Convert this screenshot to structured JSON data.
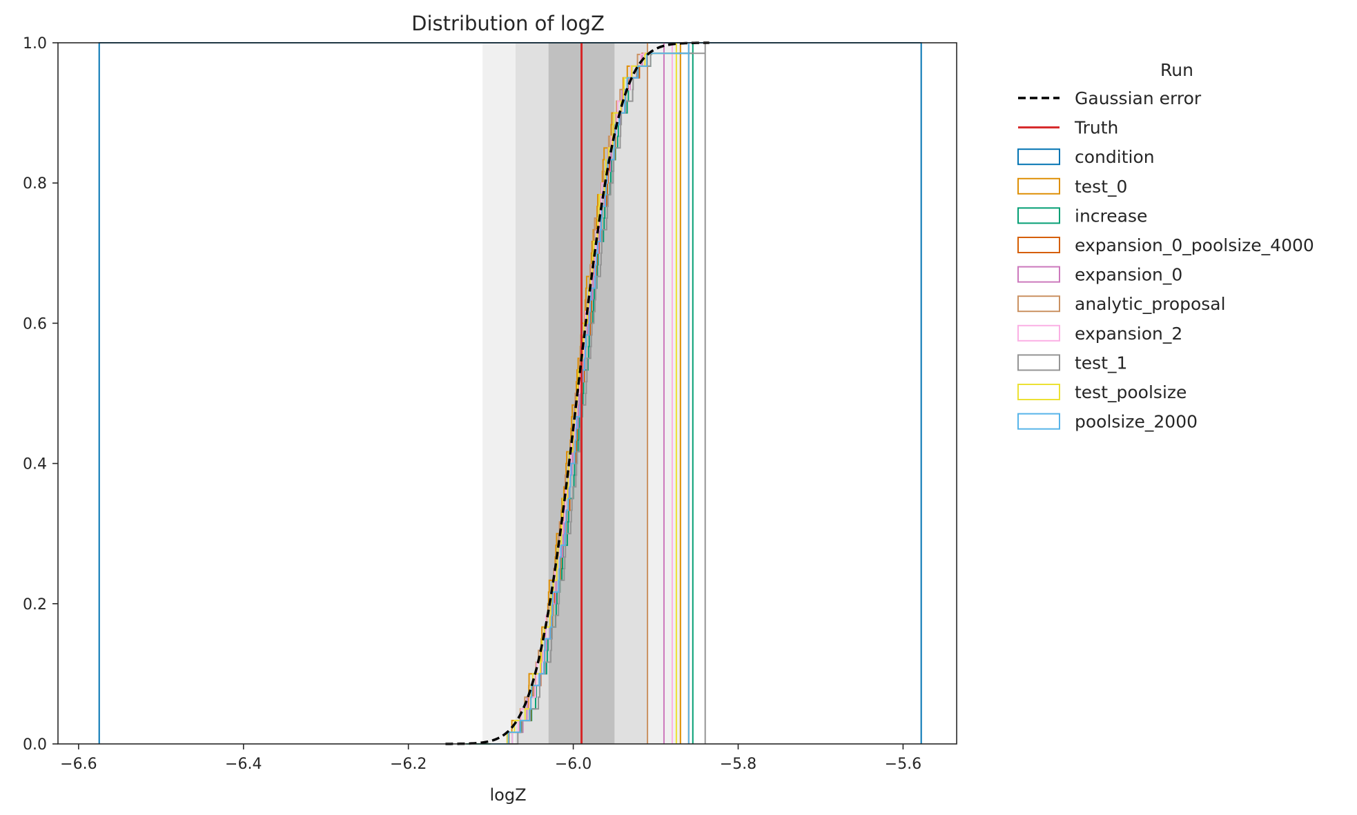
{
  "chart_data": {
    "type": "line",
    "title": "Distribution of logZ",
    "xlabel": "logZ",
    "ylabel": "",
    "xlim": [
      -6.625,
      -5.535
    ],
    "ylim": [
      0,
      1
    ],
    "xticks": [
      -6.6,
      -6.4,
      -6.2,
      -6.0,
      -5.8,
      -5.6
    ],
    "xtick_labels": [
      "−6.6",
      "−6.4",
      "−6.2",
      "−6.0",
      "−5.8",
      "−5.6"
    ],
    "yticks": [
      0.0,
      0.2,
      0.4,
      0.6,
      0.8,
      1.0
    ],
    "ytick_labels": [
      "0.0",
      "0.2",
      "0.4",
      "0.6",
      "0.8",
      "1.0"
    ],
    "grid": false,
    "legend": {
      "title": "Run",
      "placement": "outside-right"
    },
    "truth": {
      "name": "Truth",
      "x": -5.99,
      "color": "#d62728"
    },
    "gaussian_error": {
      "name": "Gaussian error",
      "mean": -5.995,
      "sigma": 0.04,
      "color": "#000000"
    },
    "sigma_bands": [
      {
        "lo": -6.11,
        "hi": -5.87,
        "color": "#f0f0f0"
      },
      {
        "lo": -6.07,
        "hi": -5.91,
        "color": "#e0e0e0"
      },
      {
        "lo": -6.03,
        "hi": -5.95,
        "color": "#c0c0c0"
      }
    ],
    "series": [
      {
        "name": "condition",
        "color": "#0173b2",
        "kind": "wide",
        "x": [
          -6.575,
          -5.578
        ]
      },
      {
        "name": "test_0",
        "color": "#de8f05",
        "kind": "ecdf",
        "start": -6.112,
        "end": -5.87,
        "offset": -0.006
      },
      {
        "name": "increase",
        "color": "#029e73",
        "kind": "ecdf",
        "start": -6.13,
        "end": -5.855,
        "offset": 0.004
      },
      {
        "name": "expansion_0_poolsize_4000",
        "color": "#d55e00",
        "kind": "ecdf",
        "start": -6.1,
        "end": -5.86,
        "offset": 0.002
      },
      {
        "name": "expansion_0",
        "color": "#cc78bc",
        "kind": "ecdf",
        "start": -6.1,
        "end": -5.89,
        "offset": 0.0
      },
      {
        "name": "analytic_proposal",
        "color": "#ca9161",
        "kind": "ecdf",
        "start": -6.1,
        "end": -5.91,
        "offset": -0.004
      },
      {
        "name": "expansion_2",
        "color": "#fbafe4",
        "kind": "ecdf",
        "start": -6.1,
        "end": -5.88,
        "offset": -0.002
      },
      {
        "name": "test_1",
        "color": "#949494",
        "kind": "ecdf",
        "start": -6.1,
        "end": -5.84,
        "offset": 0.006
      },
      {
        "name": "test_poolsize",
        "color": "#ece133",
        "kind": "ecdf",
        "start": -6.1,
        "end": -5.875,
        "offset": -0.003
      },
      {
        "name": "poolsize_2000",
        "color": "#56b4e9",
        "kind": "ecdf",
        "start": -6.1,
        "end": -5.86,
        "offset": 0.001
      }
    ]
  }
}
